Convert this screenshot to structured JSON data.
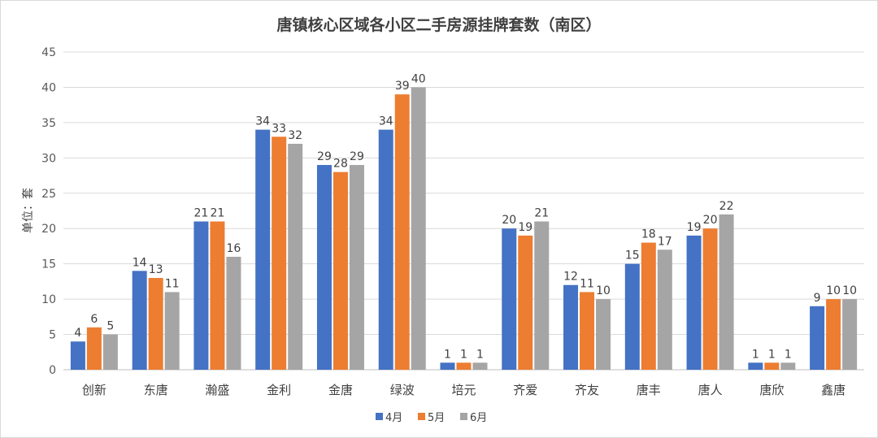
{
  "chart_data": {
    "type": "bar",
    "title": "唐镇核心区域各小区二手房源挂牌套数（南区）",
    "ylabel": "单位：套",
    "xlabel": "",
    "ylim": [
      0,
      45
    ],
    "yticks": [
      0,
      5,
      10,
      15,
      20,
      25,
      30,
      35,
      40,
      45
    ],
    "grid": true,
    "legend_position": "bottom",
    "categories": [
      "创新",
      "东唐",
      "瀚盛",
      "金利",
      "金唐",
      "绿波",
      "培元",
      "齐爱",
      "齐友",
      "唐丰",
      "唐人",
      "唐欣",
      "鑫唐"
    ],
    "series": [
      {
        "name": "4月",
        "color": "#4472C4",
        "values": [
          4,
          14,
          21,
          34,
          29,
          34,
          1,
          20,
          12,
          15,
          19,
          1,
          9
        ]
      },
      {
        "name": "5月",
        "color": "#ED7D31",
        "values": [
          6,
          13,
          21,
          33,
          28,
          39,
          1,
          19,
          11,
          18,
          20,
          1,
          10
        ]
      },
      {
        "name": "6月",
        "color": "#A5A5A5",
        "values": [
          5,
          11,
          16,
          32,
          29,
          40,
          1,
          21,
          10,
          17,
          22,
          1,
          10
        ]
      }
    ]
  }
}
